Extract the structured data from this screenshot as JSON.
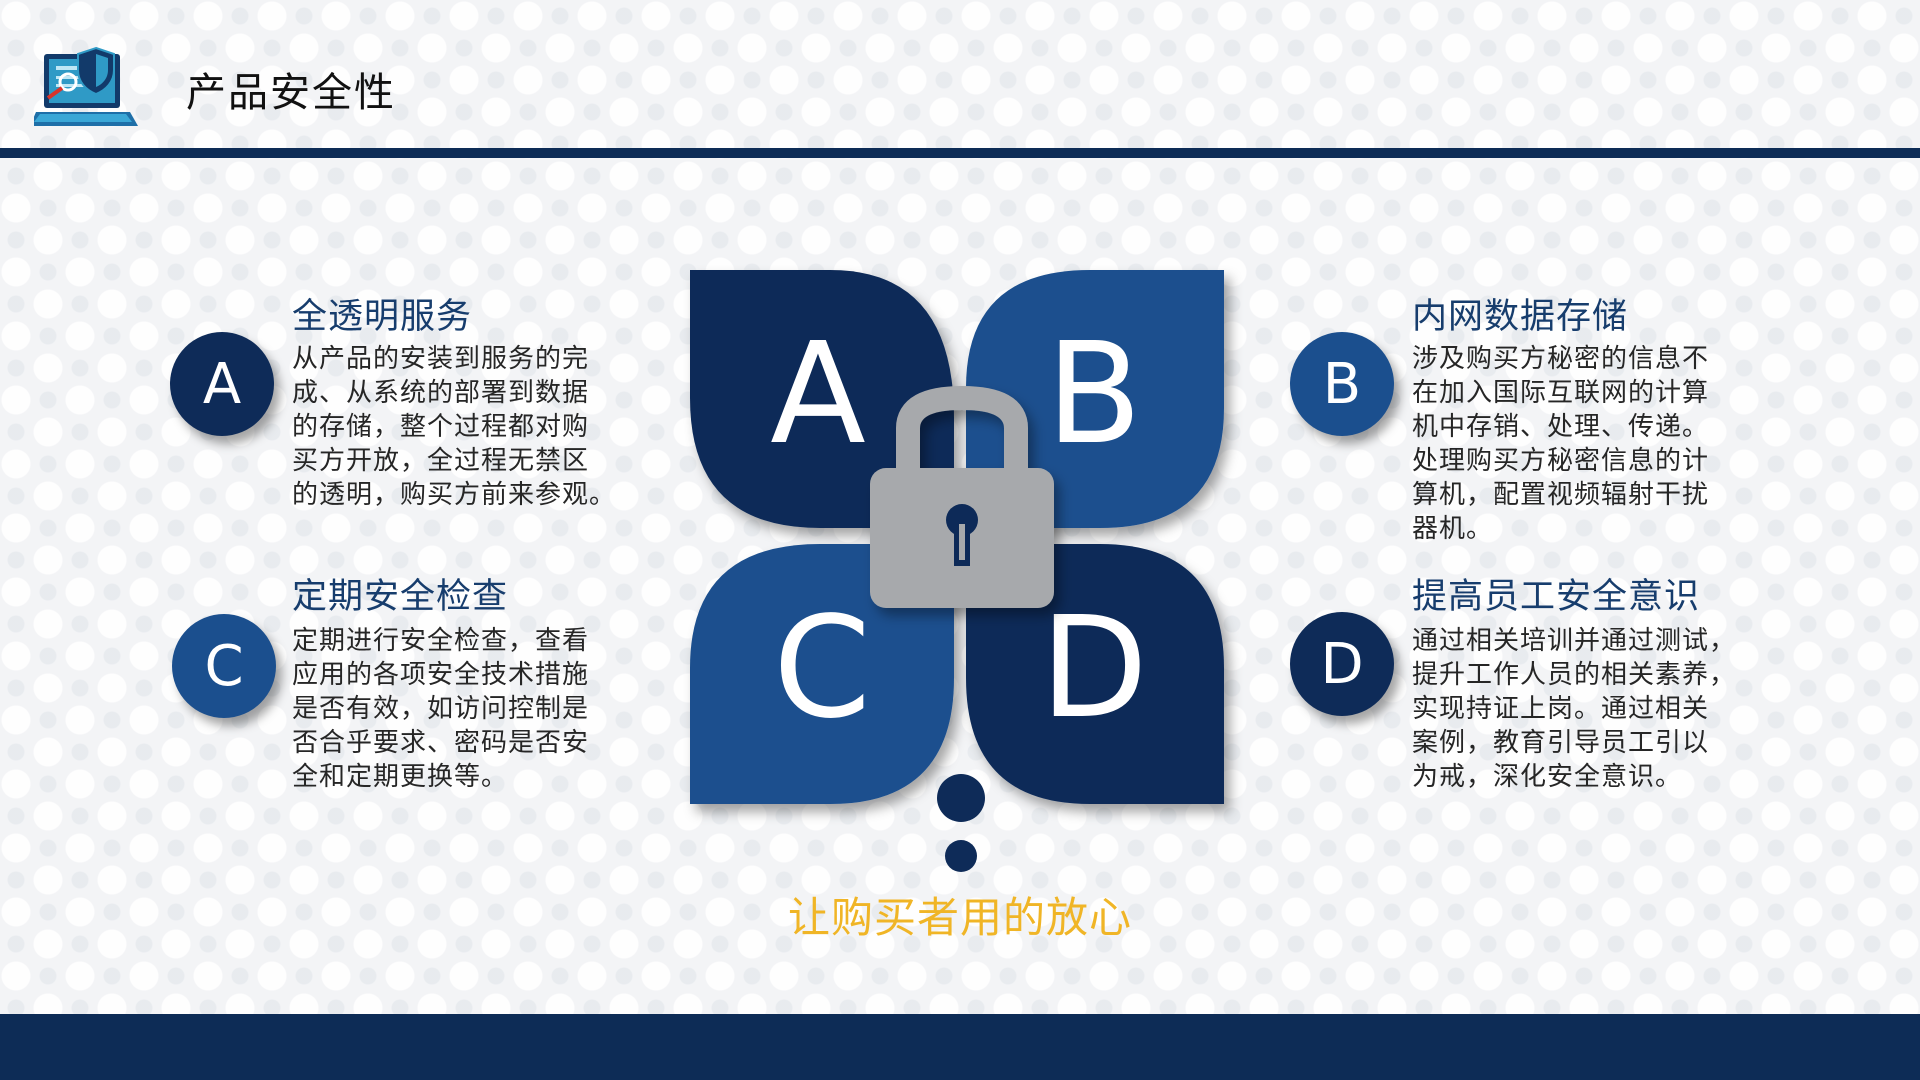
{
  "header": {
    "title": "产品安全性",
    "logo_icon": "laptop-shield-icon"
  },
  "sections": [
    {
      "letter": "A",
      "title": "全透明服务",
      "lines": [
        "从产品的安装到服务的完",
        "成、从系统的部署到数据",
        "的存储，整个过程都对购",
        "买方开放，全过程无禁区",
        "的透明，购买方前来参观。"
      ]
    },
    {
      "letter": "B",
      "title": "内网数据存储",
      "lines": [
        "涉及购买方秘密的信息不",
        "在加入国际互联网的计算",
        "机中存销、处理、传递。",
        "处理购买方秘密信息的计",
        "算机，配置视频辐射干扰",
        "器机。"
      ]
    },
    {
      "letter": "C",
      "title": "定期安全检查",
      "lines": [
        "定期进行安全检查，查看",
        "应用的各项安全技术措施",
        "是否有效，如访问控制是",
        "否合乎要求、密码是否安",
        "全和定期更换等。"
      ]
    },
    {
      "letter": "D",
      "title": "提高员工安全意识",
      "lines": [
        "通过相关培训并通过测试，",
        "提升工作人员的相关素养，",
        "实现持证上岗。通过相关",
        "案例，教育引导员工引以",
        "为戒，深化安全意识。"
      ]
    }
  ],
  "diagram": {
    "letters": [
      "A",
      "B",
      "C",
      "D"
    ],
    "center_icon": "padlock-icon"
  },
  "tagline": "让购买者用的放心",
  "colors": {
    "navy": "#0d2c56",
    "mid_blue": "#1b4f8e",
    "accent_yellow": "#f0b526",
    "lock_gray": "#a7a9ac"
  }
}
